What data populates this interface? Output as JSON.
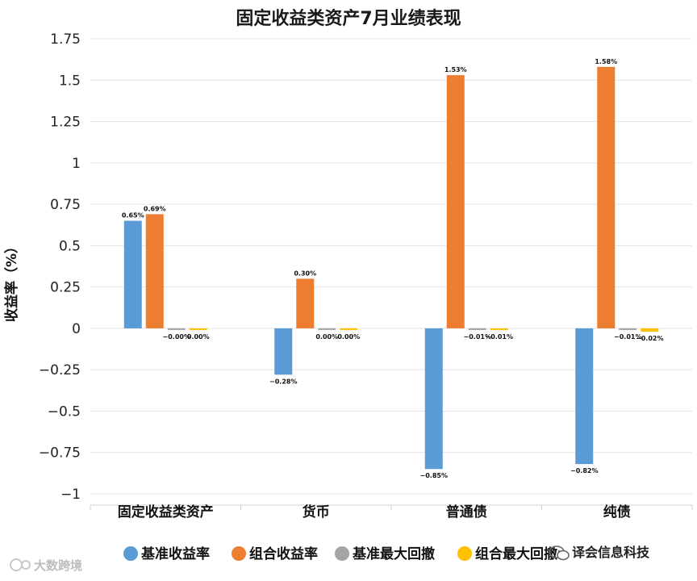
{
  "chart_data": {
    "type": "bar",
    "title": "固定收益类资产7月业绩表现",
    "ylabel": "收益率（%）",
    "xlabel": "",
    "ylim": [
      -1,
      1.75
    ],
    "yticks": [
      "1.75",
      "1.5",
      "1.25",
      "1",
      "0.75",
      "0.5",
      "0.25",
      "0",
      "−0.25",
      "−0.5",
      "−0.75",
      "−1"
    ],
    "ytick_values": [
      1.75,
      1.5,
      1.25,
      1,
      0.75,
      0.5,
      0.25,
      0,
      -0.25,
      -0.5,
      -0.75,
      -1
    ],
    "grid": true,
    "legend_position": "bottom",
    "categories": [
      "固定收益类资产",
      "货币",
      "普通债",
      "纯债"
    ],
    "series": [
      {
        "name": "基准收益率",
        "color": "#5b9bd5",
        "values": [
          0.65,
          -0.28,
          -0.85,
          -0.82
        ],
        "labels": [
          "0.65%",
          "−0.28%",
          "−0.85%",
          "−0.82%"
        ]
      },
      {
        "name": "组合收益率",
        "color": "#ed7d31",
        "values": [
          0.69,
          0.3,
          1.53,
          1.58
        ],
        "labels": [
          "0.69%",
          "0.30%",
          "1.53%",
          "1.58%"
        ]
      },
      {
        "name": "基准最大回撤",
        "color": "#a5a5a5",
        "values": [
          0.0,
          0.0,
          -0.01,
          -0.01
        ],
        "labels": [
          "−0.00%",
          "0.00%",
          "−0.01%",
          "−0.01%"
        ]
      },
      {
        "name": "组合最大回撤",
        "color": "#ffc000",
        "values": [
          0.0,
          0.0,
          -0.01,
          -0.02
        ],
        "labels": [
          "0.00%",
          "0.00%",
          "−0.01%",
          "−0.02%"
        ]
      }
    ]
  },
  "watermarks": {
    "right": {
      "text": "译会信息科技",
      "icon": "wechat-icon"
    },
    "left": {
      "text": "大数跨境",
      "icon": "logo-icon"
    }
  }
}
